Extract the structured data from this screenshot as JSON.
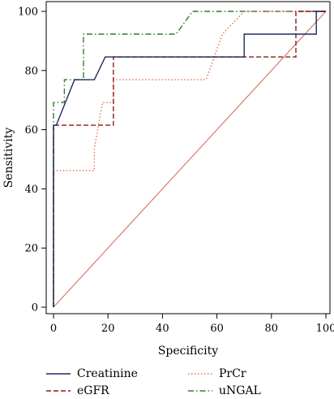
{
  "chart_data": {
    "type": "line",
    "title": "",
    "xlabel": "Specificity",
    "ylabel": "Sensitivity",
    "xlim": [
      0,
      100
    ],
    "ylim": [
      0,
      100
    ],
    "x_ticks": [
      "0",
      "20",
      "40",
      "60",
      "80",
      "100"
    ],
    "y_ticks": [
      "0",
      "20",
      "40",
      "60",
      "80",
      "100"
    ],
    "grid": false,
    "legend_position": "bottom",
    "reference_line": {
      "x": [
        0,
        100
      ],
      "y": [
        0,
        100
      ],
      "color": "#d97a6a"
    },
    "series": [
      {
        "name": "Creatinine",
        "color": "#1f2a5e",
        "dash": "solid",
        "x": [
          0,
          0,
          1,
          7.7,
          15,
          19,
          70,
          70,
          96.5,
          96.5,
          100
        ],
        "y": [
          0,
          61.5,
          61.5,
          76.9,
          76.9,
          84.6,
          84.6,
          92.3,
          92.3,
          100,
          100
        ]
      },
      {
        "name": "eGFR",
        "color": "#8b1a1a",
        "dash": "dashed",
        "x": [
          0,
          0,
          22,
          22,
          89,
          89,
          100
        ],
        "y": [
          0,
          61.5,
          61.5,
          84.6,
          84.6,
          100,
          100
        ]
      },
      {
        "name": "PrCr",
        "color": "#f06a4a",
        "dash": "dotted",
        "x": [
          0,
          0,
          15,
          15,
          18,
          22,
          22,
          56,
          62,
          70,
          100
        ],
        "y": [
          0,
          46.2,
          46.2,
          53.8,
          69.2,
          69.2,
          76.9,
          76.9,
          92.3,
          100,
          100
        ]
      },
      {
        "name": "uNGAL",
        "color": "#2e7d32",
        "dash": "dashdot",
        "x": [
          0,
          0,
          4,
          4,
          11,
          11,
          45,
          51,
          100
        ],
        "y": [
          0,
          69.2,
          69.2,
          76.9,
          76.9,
          92.3,
          92.3,
          100,
          100
        ]
      }
    ]
  }
}
